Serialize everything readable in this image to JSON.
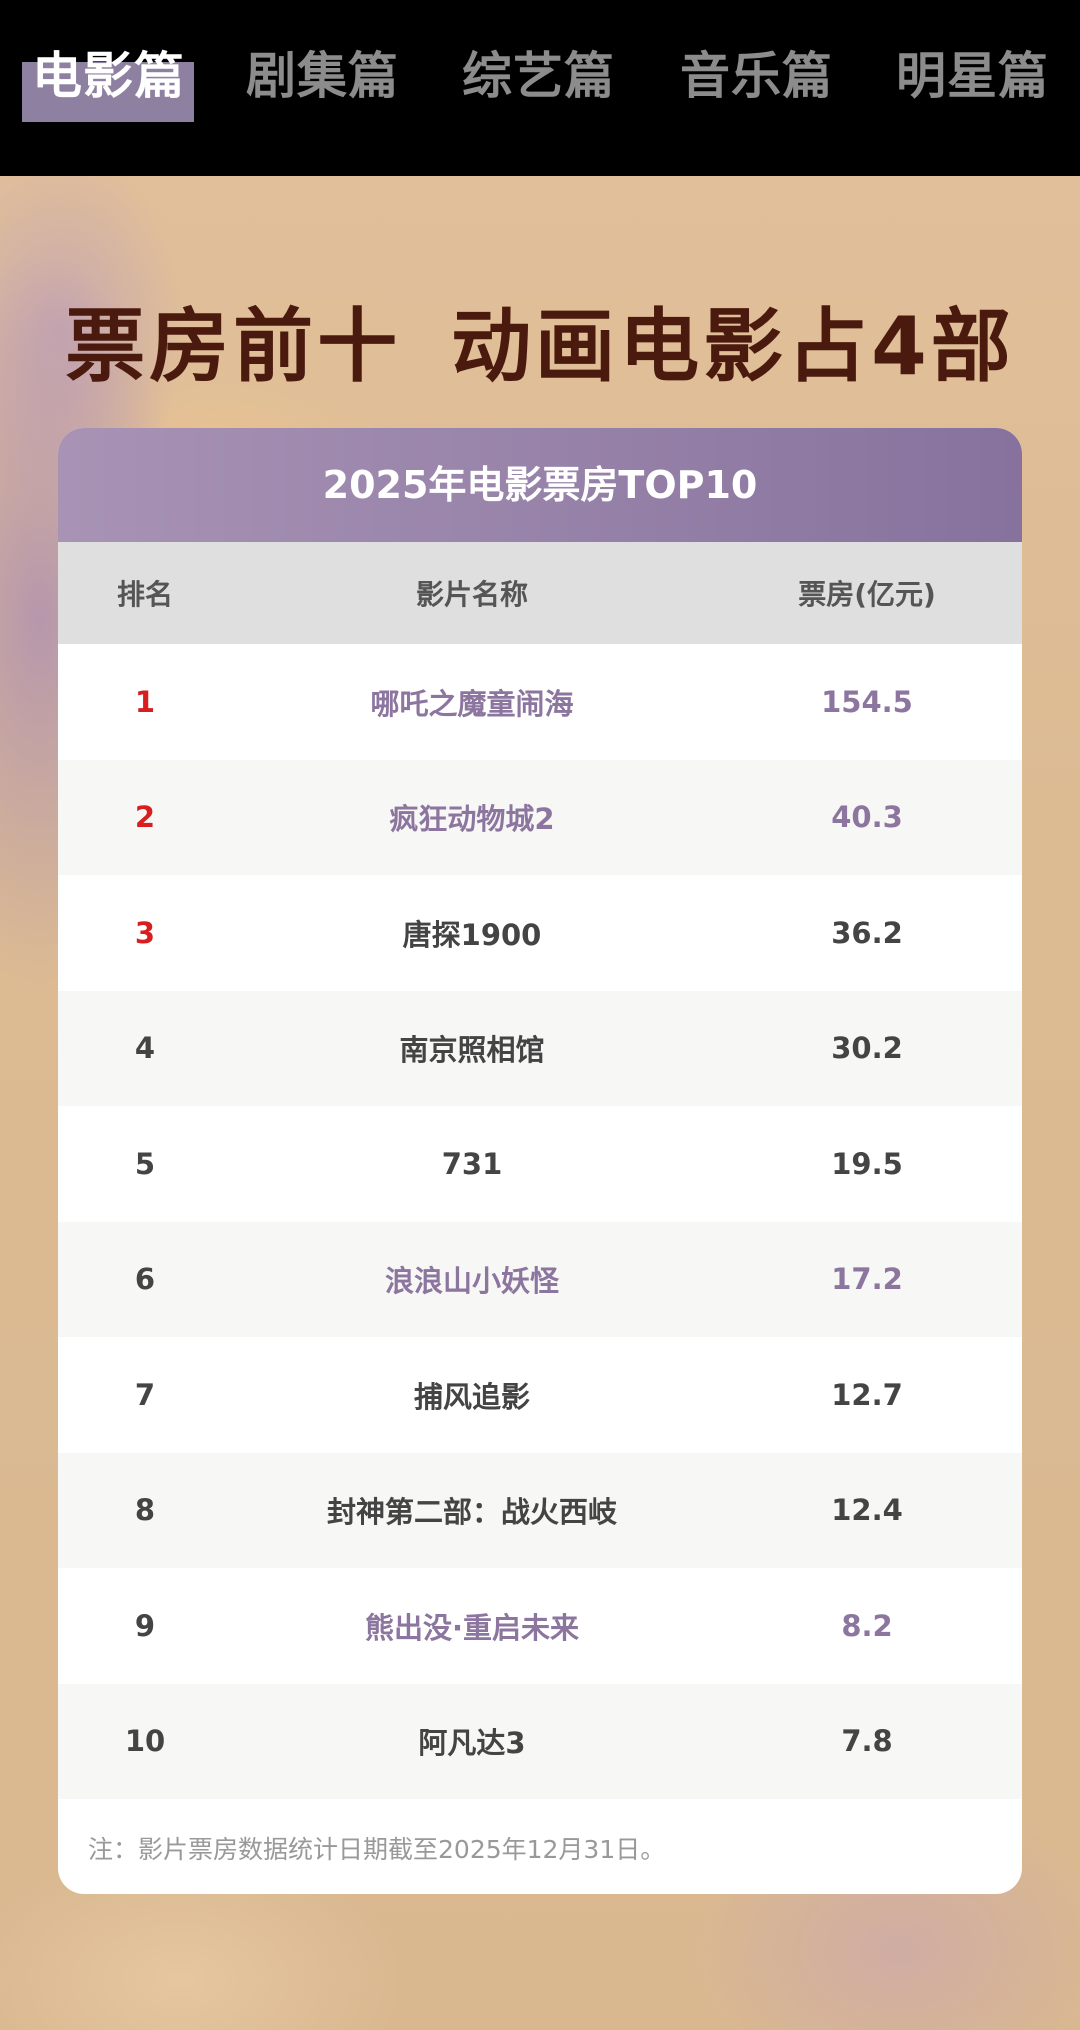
{
  "nav": {
    "tabs": [
      {
        "label": "电影篇",
        "active": true
      },
      {
        "label": "剧集篇",
        "active": false
      },
      {
        "label": "综艺篇",
        "active": false
      },
      {
        "label": "音乐篇",
        "active": false
      },
      {
        "label": "明星篇",
        "active": false
      }
    ]
  },
  "headline": {
    "part1": "票房前十",
    "part2": "动画电影占4部"
  },
  "table": {
    "title": "2025年电影票房TOP10",
    "headers": {
      "rank": "排名",
      "name": "影片名称",
      "box": "票房(亿元)"
    },
    "rows": [
      {
        "rank": "1",
        "name": "哪吒之魔童闹海",
        "box": "154.5",
        "animated": true
      },
      {
        "rank": "2",
        "name": "疯狂动物城2",
        "box": "40.3",
        "animated": true
      },
      {
        "rank": "3",
        "name": "唐探1900",
        "box": "36.2",
        "animated": false
      },
      {
        "rank": "4",
        "name": "南京照相馆",
        "box": "30.2",
        "animated": false
      },
      {
        "rank": "5",
        "name": "731",
        "box": "19.5",
        "animated": false
      },
      {
        "rank": "6",
        "name": "浪浪山小妖怪",
        "box": "17.2",
        "animated": true
      },
      {
        "rank": "7",
        "name": "捕风追影",
        "box": "12.7",
        "animated": false
      },
      {
        "rank": "8",
        "name": "封神第二部：战火西岐",
        "box": "12.4",
        "animated": false
      },
      {
        "rank": "9",
        "name": "熊出没·重启未来",
        "box": "8.2",
        "animated": true
      },
      {
        "rank": "10",
        "name": "阿凡达3",
        "box": "7.8",
        "animated": false
      }
    ],
    "note": "注：影片票房数据统计日期截至2025年12月31日。"
  },
  "colors": {
    "top3_rank": "#d81e1e",
    "animated_text": "#8c759e",
    "normal_text": "#444444",
    "headline": "#4a1a0e"
  }
}
